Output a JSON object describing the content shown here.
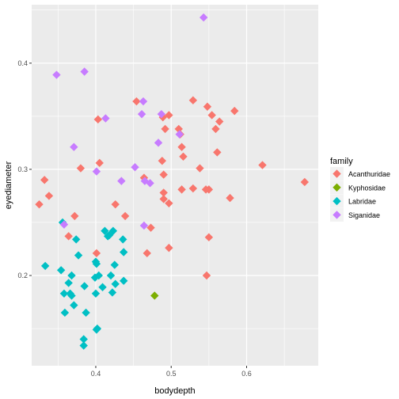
{
  "chart_data": {
    "type": "scatter",
    "xlabel": "bodydepth",
    "ylabel": "eyediameter",
    "xlim": [
      0.315,
      0.695
    ],
    "ylim": [
      0.115,
      0.455
    ],
    "x_ticks": [
      0.4,
      0.5,
      0.6
    ],
    "x_tick_labels": [
      "0.4",
      "0.5",
      "0.6"
    ],
    "y_ticks": [
      0.2,
      0.3,
      0.4
    ],
    "y_tick_labels": [
      "0.2",
      "0.3",
      "0.4"
    ],
    "grid": true,
    "legend": {
      "title": "family",
      "placement": "right"
    },
    "series": [
      {
        "name": "Acanthuridae",
        "color": "#F8766D",
        "points": [
          [
            0.325,
            0.267
          ],
          [
            0.332,
            0.29
          ],
          [
            0.338,
            0.275
          ],
          [
            0.364,
            0.237
          ],
          [
            0.372,
            0.256
          ],
          [
            0.38,
            0.301
          ],
          [
            0.401,
            0.221
          ],
          [
            0.403,
            0.347
          ],
          [
            0.405,
            0.306
          ],
          [
            0.426,
            0.267
          ],
          [
            0.439,
            0.256
          ],
          [
            0.454,
            0.364
          ],
          [
            0.464,
            0.292
          ],
          [
            0.468,
            0.221
          ],
          [
            0.473,
            0.245
          ],
          [
            0.488,
            0.308
          ],
          [
            0.489,
            0.349
          ],
          [
            0.49,
            0.295
          ],
          [
            0.49,
            0.272
          ],
          [
            0.49,
            0.278
          ],
          [
            0.492,
            0.338
          ],
          [
            0.497,
            0.226
          ],
          [
            0.497,
            0.351
          ],
          [
            0.497,
            0.268
          ],
          [
            0.51,
            0.338
          ],
          [
            0.512,
            0.333
          ],
          [
            0.514,
            0.321
          ],
          [
            0.514,
            0.281
          ],
          [
            0.516,
            0.312
          ],
          [
            0.529,
            0.365
          ],
          [
            0.529,
            0.282
          ],
          [
            0.538,
            0.301
          ],
          [
            0.546,
            0.281
          ],
          [
            0.547,
            0.2
          ],
          [
            0.548,
            0.359
          ],
          [
            0.55,
            0.236
          ],
          [
            0.55,
            0.281
          ],
          [
            0.554,
            0.351
          ],
          [
            0.559,
            0.338
          ],
          [
            0.561,
            0.316
          ],
          [
            0.564,
            0.345
          ],
          [
            0.578,
            0.273
          ],
          [
            0.584,
            0.355
          ],
          [
            0.621,
            0.304
          ],
          [
            0.677,
            0.288
          ]
        ]
      },
      {
        "name": "Kyphosidae",
        "color": "#7CAE00",
        "points": [
          [
            0.478,
            0.181
          ]
        ]
      },
      {
        "name": "Labridae",
        "color": "#00BFC4",
        "points": [
          [
            0.333,
            0.209
          ],
          [
            0.354,
            0.205
          ],
          [
            0.356,
            0.25
          ],
          [
            0.358,
            0.183
          ],
          [
            0.359,
            0.165
          ],
          [
            0.364,
            0.193
          ],
          [
            0.366,
            0.183
          ],
          [
            0.368,
            0.181
          ],
          [
            0.368,
            0.2
          ],
          [
            0.371,
            0.172
          ],
          [
            0.374,
            0.234
          ],
          [
            0.377,
            0.219
          ],
          [
            0.384,
            0.14
          ],
          [
            0.384,
            0.134
          ],
          [
            0.385,
            0.19
          ],
          [
            0.387,
            0.165
          ],
          [
            0.399,
            0.198
          ],
          [
            0.4,
            0.213
          ],
          [
            0.4,
            0.183
          ],
          [
            0.401,
            0.211
          ],
          [
            0.401,
            0.149
          ],
          [
            0.402,
            0.15
          ],
          [
            0.404,
            0.2
          ],
          [
            0.409,
            0.189
          ],
          [
            0.412,
            0.242
          ],
          [
            0.416,
            0.237
          ],
          [
            0.418,
            0.238
          ],
          [
            0.42,
            0.2
          ],
          [
            0.422,
            0.184
          ],
          [
            0.423,
            0.242
          ],
          [
            0.425,
            0.21
          ],
          [
            0.426,
            0.192
          ],
          [
            0.436,
            0.234
          ],
          [
            0.437,
            0.222
          ],
          [
            0.437,
            0.195
          ]
        ]
      },
      {
        "name": "Siganidae",
        "color": "#C77CFF",
        "points": [
          [
            0.348,
            0.389
          ],
          [
            0.358,
            0.248
          ],
          [
            0.371,
            0.321
          ],
          [
            0.385,
            0.392
          ],
          [
            0.401,
            0.298
          ],
          [
            0.413,
            0.348
          ],
          [
            0.434,
            0.289
          ],
          [
            0.452,
            0.302
          ],
          [
            0.461,
            0.352
          ],
          [
            0.463,
            0.364
          ],
          [
            0.464,
            0.247
          ],
          [
            0.465,
            0.289
          ],
          [
            0.472,
            0.287
          ],
          [
            0.483,
            0.325
          ],
          [
            0.487,
            0.352
          ],
          [
            0.511,
            0.333
          ],
          [
            0.543,
            0.443
          ]
        ]
      }
    ]
  }
}
